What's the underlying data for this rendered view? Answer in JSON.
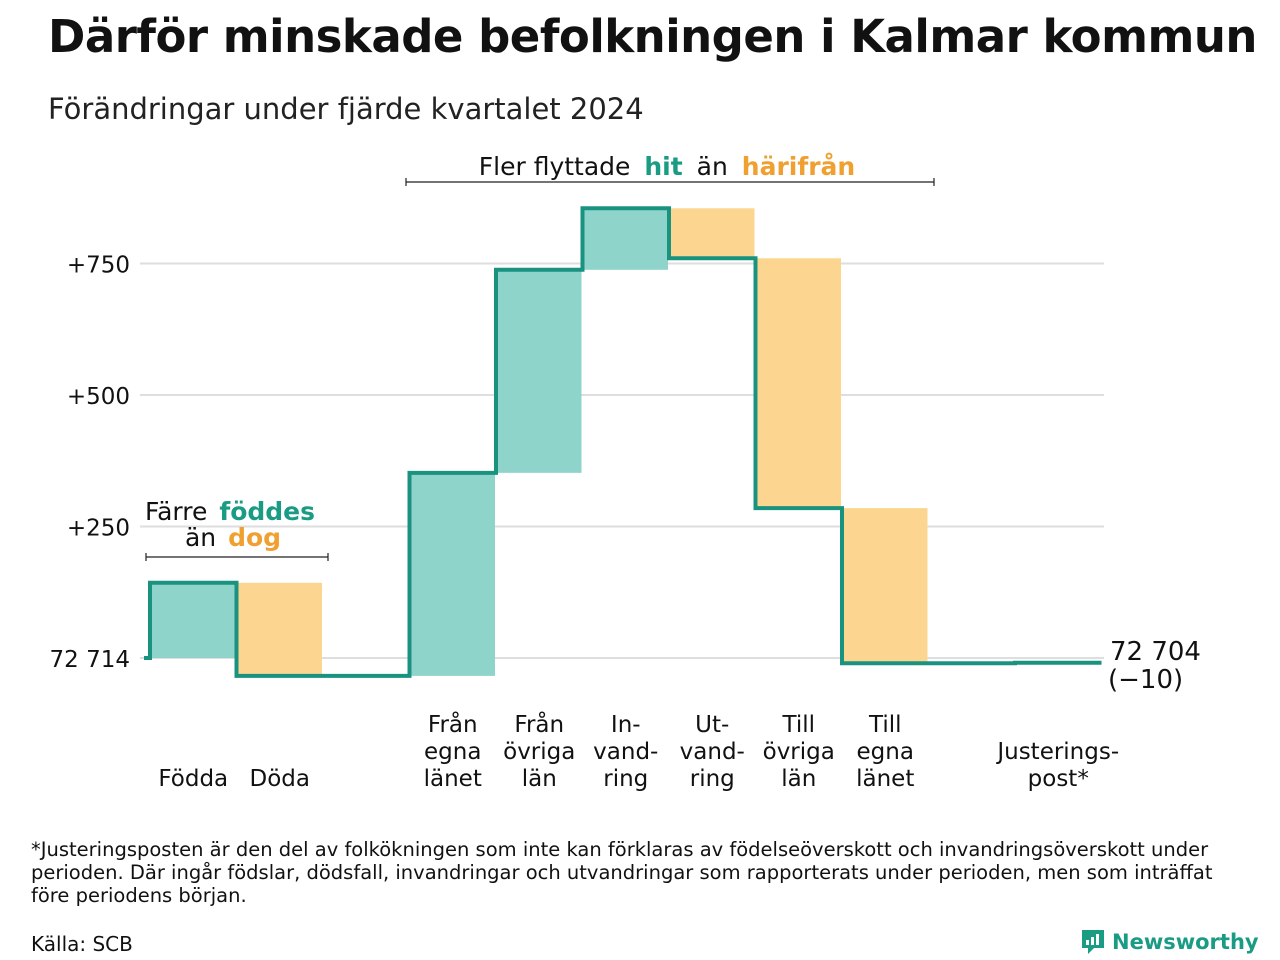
{
  "header": {
    "title": "Därför minskade befolkningen i Kalmar kommun",
    "subtitle": "Förändringar under fjärde kvartalet 2024"
  },
  "annotations": {
    "migration": {
      "prefix": "Fler flyttade",
      "hit": "hit",
      "middle": "än",
      "harifran": "härifrån"
    },
    "births": {
      "line1_prefix": "Färre",
      "line1_word": "föddes",
      "line2_prefix": "än",
      "line2_word": "dog"
    }
  },
  "end_label": {
    "value": "72 704",
    "change": "(−10)"
  },
  "colors": {
    "inflow": "#8fd4ca",
    "outflow": "#fcd690",
    "line": "#1a9280",
    "inflow_text": "#1a9b84",
    "outflow_text": "#f0a030",
    "grid": "#dedede"
  },
  "chart_data": {
    "type": "waterfall",
    "title": "Därför minskade befolkningen i Kalmar kommun",
    "subtitle": "Förändringar under fjärde kvartalet 2024",
    "start": {
      "label": "72 714",
      "value": 0
    },
    "yticks": [
      {
        "value": 0,
        "label": "72 714"
      },
      {
        "value": 250,
        "label": "+250"
      },
      {
        "value": 500,
        "label": "+500"
      },
      {
        "value": 750,
        "label": "+750"
      }
    ],
    "ylim": [
      -40,
      860
    ],
    "steps": [
      {
        "label": [
          "Födda"
        ],
        "delta": 143,
        "kind": "in"
      },
      {
        "label": [
          "Döda"
        ],
        "delta": -177,
        "kind": "out"
      },
      {
        "label": [],
        "delta": 0,
        "kind": "gap"
      },
      {
        "label": [
          "Från",
          "egna",
          "länet"
        ],
        "delta": 386,
        "kind": "in"
      },
      {
        "label": [
          "Från",
          "övriga",
          "län"
        ],
        "delta": 386,
        "kind": "in"
      },
      {
        "label": [
          "In-",
          "vand-",
          "ring"
        ],
        "delta": 117,
        "kind": "in"
      },
      {
        "label": [
          "Ut-",
          "vand-",
          "ring"
        ],
        "delta": -95,
        "kind": "out"
      },
      {
        "label": [
          "Till",
          "övriga",
          "län"
        ],
        "delta": -475,
        "kind": "out"
      },
      {
        "label": [
          "Till",
          "egna",
          "länet"
        ],
        "delta": -295,
        "kind": "out"
      },
      {
        "label": [],
        "delta": 0,
        "kind": "gap"
      },
      {
        "label": [
          "Justerings-",
          "post*"
        ],
        "delta": 1,
        "kind": "adjust"
      }
    ],
    "end": {
      "value": -10,
      "label": "72 704"
    }
  },
  "footer": {
    "footnote": "*Justeringsposten är den del av folkökningen som inte kan förklaras av födelseöverskott och invandringsöverskott under perioden. Där ingår födslar, dödsfall, invandringar och utvandringar som rapporterats under perioden, men som inträffat före periodens början.",
    "source": "Källa: SCB",
    "brand": "Newsworthy",
    "brand_icon": "newsworthy-logo-icon"
  }
}
